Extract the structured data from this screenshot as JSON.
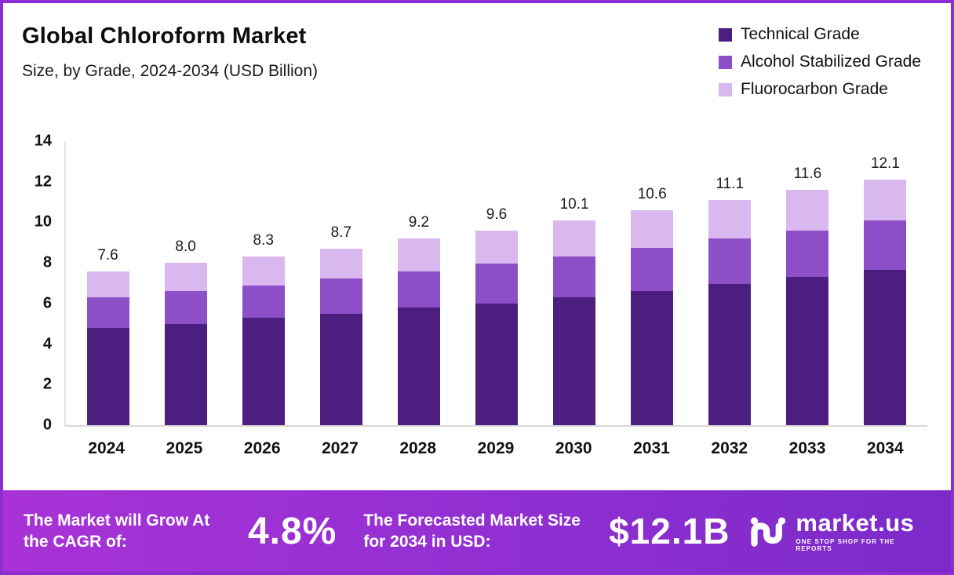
{
  "chart_data": {
    "type": "bar",
    "stacked": true,
    "title": "Global Chloroform Market",
    "subtitle": "Size, by Grade, 2024-2034 (USD Billion)",
    "categories": [
      "2024",
      "2025",
      "2026",
      "2027",
      "2028",
      "2029",
      "2030",
      "2031",
      "2032",
      "2033",
      "2034"
    ],
    "series": [
      {
        "name": "Technical Grade",
        "color": "#4b1e7f",
        "values": [
          4.8,
          5.0,
          5.3,
          5.5,
          5.8,
          6.0,
          6.3,
          6.6,
          6.95,
          7.3,
          7.65
        ]
      },
      {
        "name": "Alcohol Stabilized Grade",
        "color": "#8d4fc7",
        "values": [
          1.5,
          1.6,
          1.6,
          1.75,
          1.8,
          1.95,
          2.0,
          2.15,
          2.25,
          2.3,
          2.45
        ]
      },
      {
        "name": "Fluorocarbon Grade",
        "color": "#d9b8ef",
        "values": [
          1.3,
          1.4,
          1.4,
          1.45,
          1.6,
          1.65,
          1.8,
          1.85,
          1.9,
          2.0,
          2.0
        ]
      }
    ],
    "totals": [
      7.6,
      8.0,
      8.3,
      8.7,
      9.2,
      9.6,
      10.1,
      10.6,
      11.1,
      11.6,
      12.1
    ],
    "total_labels": [
      "7.6",
      "8.0",
      "8.3",
      "8.7",
      "9.2",
      "9.6",
      "10.1",
      "10.6",
      "11.1",
      "11.6",
      "12.1"
    ],
    "ylim": [
      0,
      14
    ],
    "yticks": [
      0,
      2,
      4,
      6,
      8,
      10,
      12,
      14
    ],
    "grid": false,
    "legend_position": "top-right"
  },
  "footer": {
    "cagr_label": "The Market will Grow At the CAGR of:",
    "cagr_value": "4.8%",
    "forecast_label": "The Forecasted Market Size for 2034 in USD:",
    "forecast_value": "$12.1B",
    "brand_name": "market.us",
    "brand_tagline": "ONE STOP SHOP FOR THE REPORTS"
  }
}
